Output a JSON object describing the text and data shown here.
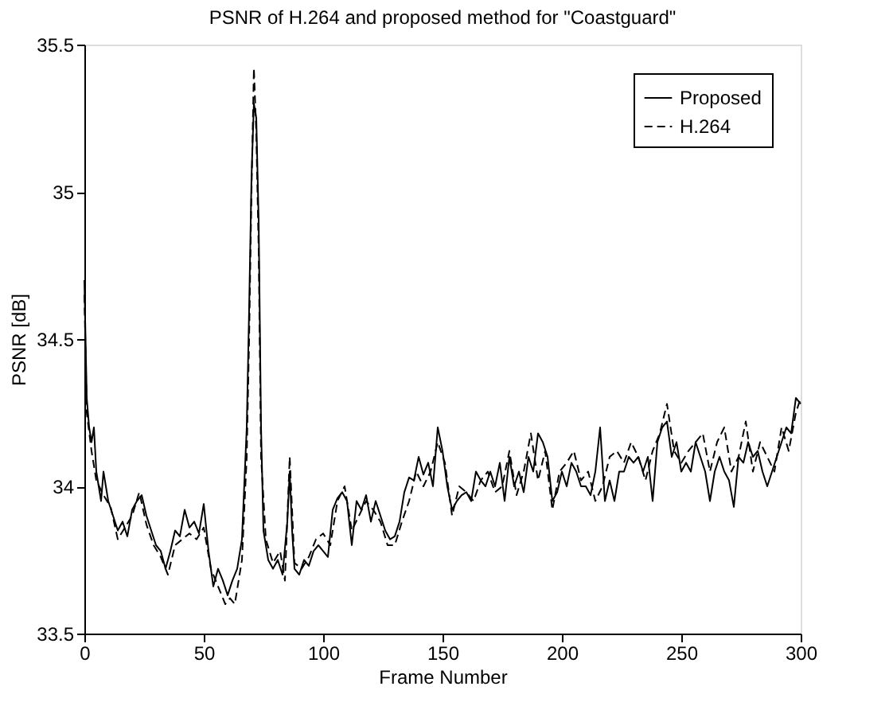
{
  "chart_data": {
    "type": "line",
    "title": "PSNR of H.264 and proposed method for \"Coastguard\"",
    "xlabel": "Frame Number",
    "ylabel": "PSNR [dB]",
    "xlim": [
      0,
      300
    ],
    "xticks": [
      0,
      50,
      100,
      150,
      200,
      250,
      300
    ],
    "ylim": [
      33.5,
      35.5
    ],
    "yticks": [
      33.5,
      34,
      34.5,
      35,
      35.5
    ],
    "grid": false,
    "legend": "top right",
    "marker": "none",
    "series": [
      {
        "name": "Proposed",
        "color": "#000000",
        "line_style": "solid",
        "x": [
          0,
          1,
          2,
          3,
          4,
          5,
          7,
          8,
          10,
          12,
          14,
          16,
          18,
          20,
          22,
          24,
          26,
          28,
          30,
          32,
          34,
          36,
          38,
          40,
          42,
          44,
          46,
          48,
          50,
          52,
          54,
          56,
          58,
          60,
          62,
          64,
          66,
          68,
          69,
          70,
          71,
          72,
          73,
          74,
          75,
          77,
          79,
          81,
          83,
          85,
          86,
          87,
          88,
          90,
          92,
          94,
          96,
          98,
          100,
          102,
          104,
          106,
          108,
          110,
          112,
          114,
          116,
          118,
          120,
          122,
          124,
          126,
          128,
          130,
          132,
          134,
          136,
          138,
          140,
          142,
          144,
          146,
          148,
          150,
          152,
          154,
          156,
          158,
          160,
          162,
          164,
          166,
          168,
          170,
          172,
          174,
          176,
          178,
          180,
          182,
          184,
          186,
          188,
          190,
          192,
          194,
          196,
          198,
          200,
          202,
          204,
          206,
          208,
          210,
          212,
          214,
          216,
          218,
          220,
          222,
          224,
          226,
          228,
          230,
          232,
          234,
          236,
          238,
          240,
          242,
          244,
          246,
          248,
          250,
          252,
          254,
          256,
          258,
          260,
          262,
          264,
          266,
          268,
          270,
          272,
          274,
          276,
          278,
          280,
          282,
          284,
          286,
          288,
          290,
          292,
          294,
          296,
          298,
          300
        ],
        "values": [
          34.7,
          34.3,
          34.2,
          34.15,
          34.2,
          34.05,
          33.95,
          34.05,
          33.95,
          33.9,
          33.85,
          33.88,
          33.83,
          33.92,
          33.95,
          33.97,
          33.9,
          33.85,
          33.8,
          33.78,
          33.72,
          33.78,
          33.85,
          33.83,
          33.92,
          33.86,
          33.88,
          33.84,
          33.94,
          33.78,
          33.66,
          33.72,
          33.68,
          33.63,
          33.68,
          33.72,
          33.82,
          34.2,
          34.6,
          35.05,
          35.3,
          35.25,
          34.9,
          34.2,
          33.85,
          33.75,
          33.72,
          33.75,
          33.7,
          33.88,
          34.05,
          33.85,
          33.72,
          33.7,
          33.75,
          33.73,
          33.78,
          33.8,
          33.78,
          33.76,
          33.92,
          33.96,
          33.98,
          33.95,
          33.8,
          33.95,
          33.92,
          33.97,
          33.88,
          33.95,
          33.9,
          33.85,
          33.82,
          33.83,
          33.88,
          33.98,
          34.03,
          34.02,
          34.1,
          34.04,
          34.08,
          34.0,
          34.2,
          34.12,
          34.0,
          33.92,
          33.95,
          33.97,
          33.98,
          33.95,
          34.05,
          34.02,
          34.0,
          34.05,
          34.0,
          34.08,
          33.95,
          34.1,
          34.0,
          34.05,
          33.98,
          34.1,
          34.05,
          34.18,
          34.15,
          34.1,
          33.95,
          33.98,
          34.05,
          34.0,
          34.08,
          34.05,
          34.0,
          34.0,
          33.97,
          34.05,
          34.2,
          33.95,
          34.02,
          33.95,
          34.05,
          34.05,
          34.1,
          34.08,
          34.1,
          34.05,
          34.1,
          33.95,
          34.15,
          34.2,
          34.22,
          34.1,
          34.15,
          34.05,
          34.08,
          34.05,
          34.15,
          34.1,
          34.05,
          33.95,
          34.05,
          34.1,
          34.05,
          34.02,
          33.93,
          34.1,
          34.08,
          34.15,
          34.1,
          34.12,
          34.05,
          34.0,
          34.05,
          34.1,
          34.15,
          34.2,
          34.18,
          34.3,
          34.28
        ]
      },
      {
        "name": "H.264",
        "color": "#000000",
        "line_style": "dashed",
        "x": [
          0,
          1,
          3,
          5,
          8,
          11,
          14,
          17,
          20,
          23,
          26,
          29,
          32,
          35,
          38,
          41,
          44,
          47,
          50,
          53,
          56,
          59,
          61,
          63,
          66,
          68,
          69,
          70,
          71,
          72,
          73,
          74,
          76,
          79,
          82,
          84,
          86,
          88,
          91,
          94,
          97,
          100,
          103,
          106,
          109,
          112,
          115,
          118,
          121,
          124,
          127,
          130,
          133,
          136,
          139,
          142,
          145,
          148,
          151,
          154,
          157,
          160,
          163,
          166,
          169,
          172,
          175,
          178,
          181,
          184,
          187,
          190,
          193,
          196,
          199,
          202,
          205,
          208,
          211,
          214,
          217,
          220,
          223,
          226,
          229,
          232,
          235,
          238,
          241,
          244,
          247,
          250,
          253,
          256,
          259,
          262,
          265,
          268,
          271,
          274,
          277,
          280,
          283,
          286,
          289,
          292,
          295,
          298,
          300
        ],
        "values": [
          34.65,
          34.25,
          34.12,
          34.02,
          33.97,
          33.93,
          33.82,
          33.86,
          33.9,
          33.98,
          33.87,
          33.8,
          33.76,
          33.7,
          33.8,
          33.82,
          33.84,
          33.82,
          33.86,
          33.72,
          33.66,
          33.6,
          33.62,
          33.6,
          33.75,
          34.1,
          34.5,
          35.0,
          35.42,
          35.2,
          34.8,
          34.1,
          33.82,
          33.74,
          33.78,
          33.68,
          34.1,
          33.74,
          33.72,
          33.76,
          33.82,
          33.84,
          33.8,
          33.95,
          34.0,
          33.85,
          33.9,
          33.95,
          33.92,
          33.88,
          33.8,
          33.8,
          33.88,
          33.95,
          34.05,
          34.0,
          34.05,
          34.15,
          34.08,
          33.9,
          34.0,
          33.98,
          33.95,
          34.02,
          34.05,
          33.98,
          34.0,
          34.12,
          33.97,
          34.05,
          34.18,
          34.02,
          34.12,
          33.92,
          34.05,
          34.08,
          34.12,
          34.02,
          34.05,
          33.95,
          34.0,
          34.1,
          34.12,
          34.08,
          34.15,
          34.1,
          34.02,
          34.12,
          34.18,
          34.28,
          34.12,
          34.08,
          34.12,
          34.15,
          34.18,
          34.05,
          34.15,
          34.2,
          34.05,
          34.1,
          34.22,
          34.05,
          34.15,
          34.1,
          34.05,
          34.2,
          34.12,
          34.25,
          34.3
        ]
      }
    ]
  }
}
